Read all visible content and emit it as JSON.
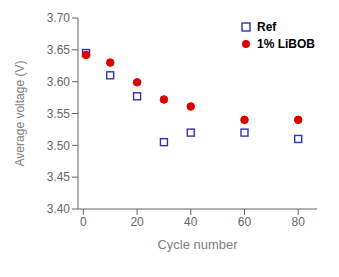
{
  "chart_data": {
    "type": "scatter",
    "xlabel": "Cycle number",
    "ylabel": "Average voltage (V)",
    "x": [
      1,
      10,
      20,
      30,
      40,
      60,
      80
    ],
    "series": [
      {
        "name": "Ref",
        "color": "#3030bb",
        "marker": "square",
        "values": [
          3.645,
          3.61,
          3.577,
          3.505,
          3.52,
          3.52,
          3.51
        ]
      },
      {
        "name": "1% LiBOB",
        "color": "#dd0000",
        "marker": "circle",
        "values": [
          3.642,
          3.63,
          3.599,
          3.572,
          3.561,
          3.54,
          3.54
        ]
      }
    ],
    "xlim": [
      -2,
      87
    ],
    "xticks": [
      0,
      20,
      40,
      60,
      80
    ],
    "ylim": [
      3.4,
      3.7
    ],
    "yticks": [
      {
        "value": 3.4,
        "label": "3.40"
      },
      3.45,
      {
        "value": 3.5,
        "label": "3.50"
      },
      3.55,
      {
        "value": 3.6,
        "label": "3.60"
      },
      3.65,
      {
        "value": 3.7,
        "label": "3.70"
      }
    ],
    "legend": "upper right",
    "grid": false
  }
}
